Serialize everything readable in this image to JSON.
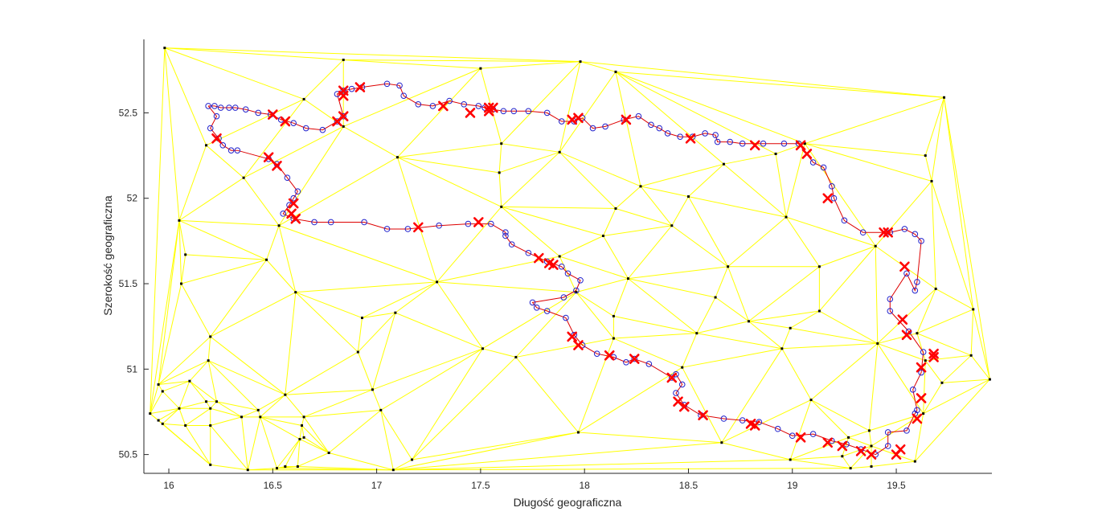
{
  "chart_data": {
    "type": "scatter",
    "title": "",
    "xlabel": "Długość geograficzna",
    "ylabel": "Szerokość geograficzna",
    "xlim": [
      15.88,
      19.96
    ],
    "ylim": [
      50.39,
      52.93
    ],
    "xticks": [
      {
        "value": 16,
        "label": "16"
      },
      {
        "value": 16.5,
        "label": "16.5"
      },
      {
        "value": 17,
        "label": "17"
      },
      {
        "value": 17.5,
        "label": "17.5"
      },
      {
        "value": 18,
        "label": "18"
      },
      {
        "value": 18.5,
        "label": "18.5"
      },
      {
        "value": 19,
        "label": "19"
      },
      {
        "value": 19.5,
        "label": "19.5"
      }
    ],
    "yticks": [
      {
        "value": 50.5,
        "label": "50.5"
      },
      {
        "value": 51,
        "label": "51"
      },
      {
        "value": 51.5,
        "label": "51.5"
      },
      {
        "value": 52,
        "label": "52"
      },
      {
        "value": 52.5,
        "label": "52.5"
      }
    ],
    "grid": false,
    "legend": "none",
    "colors": {
      "triangulation": "#ffff00",
      "route": "#dd0000",
      "route_markers": "#2222cc",
      "cross_markers": "#ff0000",
      "points": "#000000",
      "point_ring": "#e8a000"
    },
    "points": [
      [
        15.98,
        52.88
      ],
      [
        16.84,
        52.81
      ],
      [
        17.5,
        52.76
      ],
      [
        17.98,
        52.8
      ],
      [
        18.15,
        52.74
      ],
      [
        19.73,
        52.59
      ],
      [
        16.65,
        52.58
      ],
      [
        16.84,
        52.42
      ],
      [
        17.6,
        52.32
      ],
      [
        17.1,
        52.24
      ],
      [
        17.59,
        52.15
      ],
      [
        17.88,
        52.27
      ],
      [
        16.18,
        52.31
      ],
      [
        16.36,
        52.12
      ],
      [
        16.05,
        51.87
      ],
      [
        16.08,
        51.67
      ],
      [
        16.06,
        51.5
      ],
      [
        16.53,
        51.84
      ],
      [
        16.47,
        51.64
      ],
      [
        16.61,
        51.45
      ],
      [
        16.2,
        51.19
      ],
      [
        16.19,
        51.05
      ],
      [
        16.1,
        50.93
      ],
      [
        16.18,
        50.81
      ],
      [
        16.23,
        50.81
      ],
      [
        15.95,
        50.91
      ],
      [
        15.97,
        50.87
      ],
      [
        15.91,
        50.74
      ],
      [
        15.95,
        50.7
      ],
      [
        15.97,
        50.68
      ],
      [
        16.05,
        50.77
      ],
      [
        16.08,
        50.67
      ],
      [
        16.2,
        50.77
      ],
      [
        16.2,
        50.67
      ],
      [
        16.35,
        50.72
      ],
      [
        16.43,
        50.76
      ],
      [
        16.44,
        50.72
      ],
      [
        16.56,
        50.85
      ],
      [
        16.64,
        50.67
      ],
      [
        16.65,
        50.72
      ],
      [
        16.63,
        50.59
      ],
      [
        16.77,
        50.51
      ],
      [
        16.2,
        50.44
      ],
      [
        16.38,
        50.41
      ],
      [
        16.52,
        50.42
      ],
      [
        16.56,
        50.43
      ],
      [
        16.62,
        50.43
      ],
      [
        16.65,
        50.6
      ],
      [
        17.08,
        50.41
      ],
      [
        17.17,
        50.47
      ],
      [
        17.02,
        50.76
      ],
      [
        16.98,
        50.88
      ],
      [
        16.91,
        51.1
      ],
      [
        16.93,
        51.3
      ],
      [
        17.09,
        51.33
      ],
      [
        17.29,
        51.51
      ],
      [
        17.6,
        51.95
      ],
      [
        17.51,
        51.12
      ],
      [
        17.67,
        51.07
      ],
      [
        17.97,
        50.63
      ],
      [
        17.88,
        51.66
      ],
      [
        17.96,
        51.45
      ],
      [
        18.09,
        51.78
      ],
      [
        18.15,
        51.94
      ],
      [
        18.27,
        52.07
      ],
      [
        18.21,
        51.53
      ],
      [
        18.14,
        51.31
      ],
      [
        18.14,
        51.18
      ],
      [
        18.42,
        51.84
      ],
      [
        18.5,
        52.01
      ],
      [
        18.54,
        51.21
      ],
      [
        18.47,
        51.01
      ],
      [
        18.63,
        51.42
      ],
      [
        18.69,
        51.6
      ],
      [
        18.66,
        50.57
      ],
      [
        18.67,
        52.2
      ],
      [
        18.79,
        51.28
      ],
      [
        18.95,
        51.12
      ],
      [
        18.97,
        51.89
      ],
      [
        18.99,
        51.24
      ],
      [
        18.92,
        52.26
      ],
      [
        19.06,
        52.32
      ],
      [
        19.13,
        51.6
      ],
      [
        19.13,
        51.34
      ],
      [
        19.09,
        50.82
      ],
      [
        18.99,
        50.47
      ],
      [
        19.28,
        50.42
      ],
      [
        19.27,
        50.6
      ],
      [
        19.24,
        50.49
      ],
      [
        19.37,
        50.64
      ],
      [
        19.38,
        50.55
      ],
      [
        19.38,
        50.43
      ],
      [
        19.41,
        51.15
      ],
      [
        19.4,
        51.72
      ],
      [
        19.6,
        51.21
      ],
      [
        19.64,
        51.05
      ],
      [
        19.59,
        50.46
      ],
      [
        19.63,
        50.74
      ],
      [
        19.72,
        50.92
      ],
      [
        19.86,
        51.08
      ],
      [
        19.87,
        51.35
      ],
      [
        19.69,
        51.47
      ],
      [
        19.67,
        52.1
      ],
      [
        19.64,
        52.25
      ],
      [
        19.95,
        50.94
      ]
    ],
    "route_circles": [
      [
        16.19,
        52.54
      ],
      [
        16.22,
        52.54
      ],
      [
        16.25,
        52.53
      ],
      [
        16.29,
        52.53
      ],
      [
        16.32,
        52.53
      ],
      [
        16.37,
        52.52
      ],
      [
        16.43,
        52.5
      ],
      [
        16.49,
        52.49
      ],
      [
        16.54,
        52.46
      ],
      [
        16.6,
        52.44
      ],
      [
        16.66,
        52.41
      ],
      [
        16.74,
        52.4
      ],
      [
        16.81,
        52.45
      ],
      [
        16.84,
        52.48
      ],
      [
        16.81,
        52.61
      ],
      [
        16.84,
        52.63
      ],
      [
        16.88,
        52.64
      ],
      [
        16.93,
        52.65
      ],
      [
        17.05,
        52.67
      ],
      [
        17.11,
        52.66
      ],
      [
        17.13,
        52.6
      ],
      [
        17.2,
        52.55
      ],
      [
        17.27,
        52.54
      ],
      [
        17.35,
        52.57
      ],
      [
        17.42,
        52.55
      ],
      [
        17.49,
        52.54
      ],
      [
        17.52,
        52.53
      ],
      [
        17.56,
        52.52
      ],
      [
        17.61,
        52.51
      ],
      [
        17.66,
        52.51
      ],
      [
        17.73,
        52.51
      ],
      [
        17.82,
        52.5
      ],
      [
        17.89,
        52.45
      ],
      [
        17.95,
        52.45
      ],
      [
        17.99,
        52.47
      ],
      [
        18.04,
        52.41
      ],
      [
        18.1,
        52.42
      ],
      [
        18.19,
        52.46
      ],
      [
        18.26,
        52.48
      ],
      [
        18.32,
        52.43
      ],
      [
        18.36,
        52.41
      ],
      [
        18.4,
        52.38
      ],
      [
        18.46,
        52.36
      ],
      [
        18.52,
        52.36
      ],
      [
        18.58,
        52.38
      ],
      [
        18.63,
        52.37
      ],
      [
        18.64,
        52.33
      ],
      [
        18.7,
        52.33
      ],
      [
        18.76,
        52.32
      ],
      [
        18.86,
        52.32
      ],
      [
        18.96,
        52.32
      ],
      [
        19.03,
        52.32
      ],
      [
        19.1,
        52.21
      ],
      [
        19.15,
        52.18
      ],
      [
        19.19,
        52.07
      ],
      [
        19.2,
        52.0
      ],
      [
        19.25,
        51.87
      ],
      [
        19.34,
        51.8
      ],
      [
        19.47,
        51.8
      ],
      [
        19.54,
        51.82
      ],
      [
        19.59,
        51.79
      ],
      [
        19.62,
        51.75
      ],
      [
        19.6,
        51.51
      ],
      [
        19.59,
        51.46
      ],
      [
        19.55,
        51.56
      ],
      [
        19.47,
        51.41
      ],
      [
        19.47,
        51.34
      ],
      [
        19.56,
        51.22
      ],
      [
        19.63,
        51.1
      ],
      [
        19.62,
        50.98
      ],
      [
        19.58,
        50.88
      ],
      [
        19.6,
        50.76
      ],
      [
        19.59,
        50.74
      ],
      [
        19.55,
        50.64
      ],
      [
        19.46,
        50.63
      ],
      [
        19.46,
        50.55
      ],
      [
        19.4,
        50.5
      ],
      [
        19.33,
        50.53
      ],
      [
        19.26,
        50.56
      ],
      [
        19.19,
        50.58
      ],
      [
        19.1,
        50.62
      ],
      [
        19.0,
        50.61
      ],
      [
        18.93,
        50.65
      ],
      [
        18.84,
        50.69
      ],
      [
        18.76,
        50.7
      ],
      [
        18.67,
        50.71
      ],
      [
        18.56,
        50.73
      ],
      [
        18.48,
        50.79
      ],
      [
        18.44,
        50.86
      ],
      [
        18.47,
        50.91
      ],
      [
        18.44,
        50.97
      ],
      [
        18.42,
        50.95
      ],
      [
        18.31,
        51.03
      ],
      [
        18.24,
        51.06
      ],
      [
        18.2,
        51.04
      ],
      [
        18.14,
        51.07
      ],
      [
        18.06,
        51.09
      ],
      [
        17.99,
        51.14
      ],
      [
        17.95,
        51.2
      ],
      [
        17.91,
        51.3
      ],
      [
        17.82,
        51.34
      ],
      [
        17.77,
        51.36
      ],
      [
        17.75,
        51.39
      ],
      [
        17.9,
        51.42
      ],
      [
        17.96,
        51.46
      ],
      [
        17.98,
        51.52
      ],
      [
        17.92,
        51.56
      ],
      [
        17.89,
        51.6
      ],
      [
        17.82,
        51.63
      ],
      [
        17.73,
        51.68
      ],
      [
        17.65,
        51.73
      ],
      [
        17.62,
        51.78
      ],
      [
        17.62,
        51.8
      ],
      [
        17.55,
        51.85
      ],
      [
        17.44,
        51.85
      ],
      [
        17.3,
        51.84
      ],
      [
        17.15,
        51.82
      ],
      [
        17.05,
        51.82
      ],
      [
        16.94,
        51.86
      ],
      [
        16.78,
        51.86
      ],
      [
        16.7,
        51.86
      ],
      [
        16.6,
        51.88
      ],
      [
        16.55,
        51.91
      ],
      [
        16.58,
        51.96
      ],
      [
        16.6,
        52.0
      ],
      [
        16.62,
        52.04
      ],
      [
        16.57,
        52.12
      ],
      [
        16.52,
        52.2
      ],
      [
        16.48,
        52.23
      ],
      [
        16.33,
        52.28
      ],
      [
        16.3,
        52.28
      ],
      [
        16.26,
        52.31
      ],
      [
        16.24,
        52.35
      ],
      [
        16.2,
        52.41
      ],
      [
        16.23,
        52.48
      ]
    ],
    "route_crosses": [
      [
        16.23,
        52.35
      ],
      [
        16.48,
        52.24
      ],
      [
        16.52,
        52.19
      ],
      [
        16.6,
        51.97
      ],
      [
        16.59,
        51.91
      ],
      [
        16.61,
        51.88
      ],
      [
        16.5,
        52.49
      ],
      [
        16.56,
        52.45
      ],
      [
        16.81,
        52.45
      ],
      [
        16.84,
        52.48
      ],
      [
        16.84,
        52.6
      ],
      [
        16.84,
        52.63
      ],
      [
        16.92,
        52.65
      ],
      [
        17.32,
        52.54
      ],
      [
        17.45,
        52.5
      ],
      [
        17.54,
        52.53
      ],
      [
        17.54,
        52.51
      ],
      [
        17.56,
        52.53
      ],
      [
        17.94,
        52.46
      ],
      [
        17.97,
        52.47
      ],
      [
        18.2,
        52.46
      ],
      [
        18.51,
        52.35
      ],
      [
        18.82,
        52.31
      ],
      [
        19.04,
        52.31
      ],
      [
        19.07,
        52.26
      ],
      [
        19.17,
        52.0
      ],
      [
        19.44,
        51.8
      ],
      [
        19.46,
        51.8
      ],
      [
        19.54,
        51.6
      ],
      [
        19.53,
        51.29
      ],
      [
        19.55,
        51.2
      ],
      [
        19.62,
        51.01
      ],
      [
        19.68,
        51.09
      ],
      [
        19.68,
        51.07
      ],
      [
        19.62,
        50.83
      ],
      [
        19.6,
        50.71
      ],
      [
        19.5,
        50.5
      ],
      [
        19.52,
        50.53
      ],
      [
        19.38,
        50.5
      ],
      [
        19.33,
        50.52
      ],
      [
        19.24,
        50.55
      ],
      [
        19.17,
        50.57
      ],
      [
        19.04,
        50.6
      ],
      [
        18.82,
        50.67
      ],
      [
        18.8,
        50.68
      ],
      [
        18.57,
        50.73
      ],
      [
        18.48,
        50.78
      ],
      [
        18.45,
        50.81
      ],
      [
        18.42,
        50.95
      ],
      [
        18.24,
        51.06
      ],
      [
        18.12,
        51.08
      ],
      [
        17.97,
        51.14
      ],
      [
        17.94,
        51.19
      ],
      [
        17.85,
        51.61
      ],
      [
        17.83,
        51.62
      ],
      [
        17.78,
        51.65
      ],
      [
        17.49,
        51.86
      ],
      [
        17.2,
        51.83
      ]
    ]
  }
}
